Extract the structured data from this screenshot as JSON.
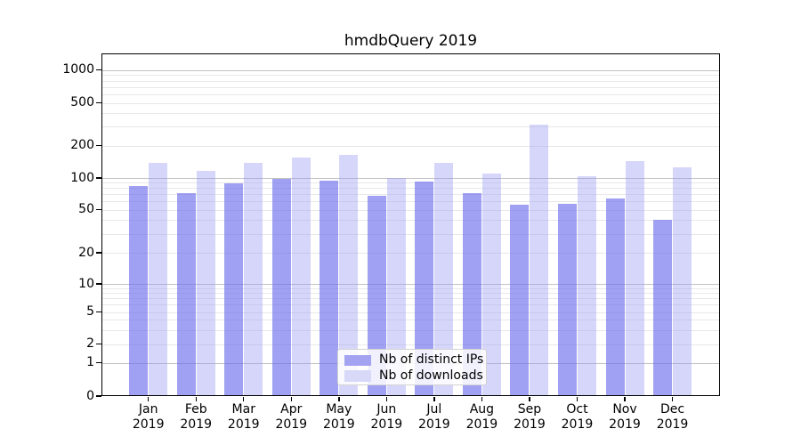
{
  "chart_data": {
    "type": "bar",
    "title": "hmdbQuery 2019",
    "categories": [
      "Jan 2019",
      "Feb 2019",
      "Mar 2019",
      "Apr 2019",
      "May 2019",
      "Jun 2019",
      "Jul 2019",
      "Aug 2019",
      "Sep 2019",
      "Oct 2019",
      "Nov 2019",
      "Dec 2019"
    ],
    "series": [
      {
        "name": "Nb of distinct IPs",
        "color": "#a3a3f2",
        "fill": "rgba(108,108,236,0.64)",
        "values": [
          84,
          72,
          89,
          99,
          94,
          68,
          93,
          72,
          56,
          57,
          64,
          40
        ]
      },
      {
        "name": "Nb of downloads",
        "color": "#d8d8f8",
        "fill": "rgba(158,158,242,0.42)",
        "values": [
          139,
          117,
          139,
          156,
          165,
          100,
          139,
          110,
          313,
          103,
          143,
          125
        ]
      }
    ],
    "xlabel": "",
    "ylabel": "",
    "yscale": "symlog",
    "yticks": [
      0,
      1,
      2,
      5,
      10,
      20,
      50,
      100,
      200,
      500,
      1000
    ],
    "ylim": [
      0,
      1400
    ],
    "grid": true,
    "legend_position": "lower center"
  }
}
